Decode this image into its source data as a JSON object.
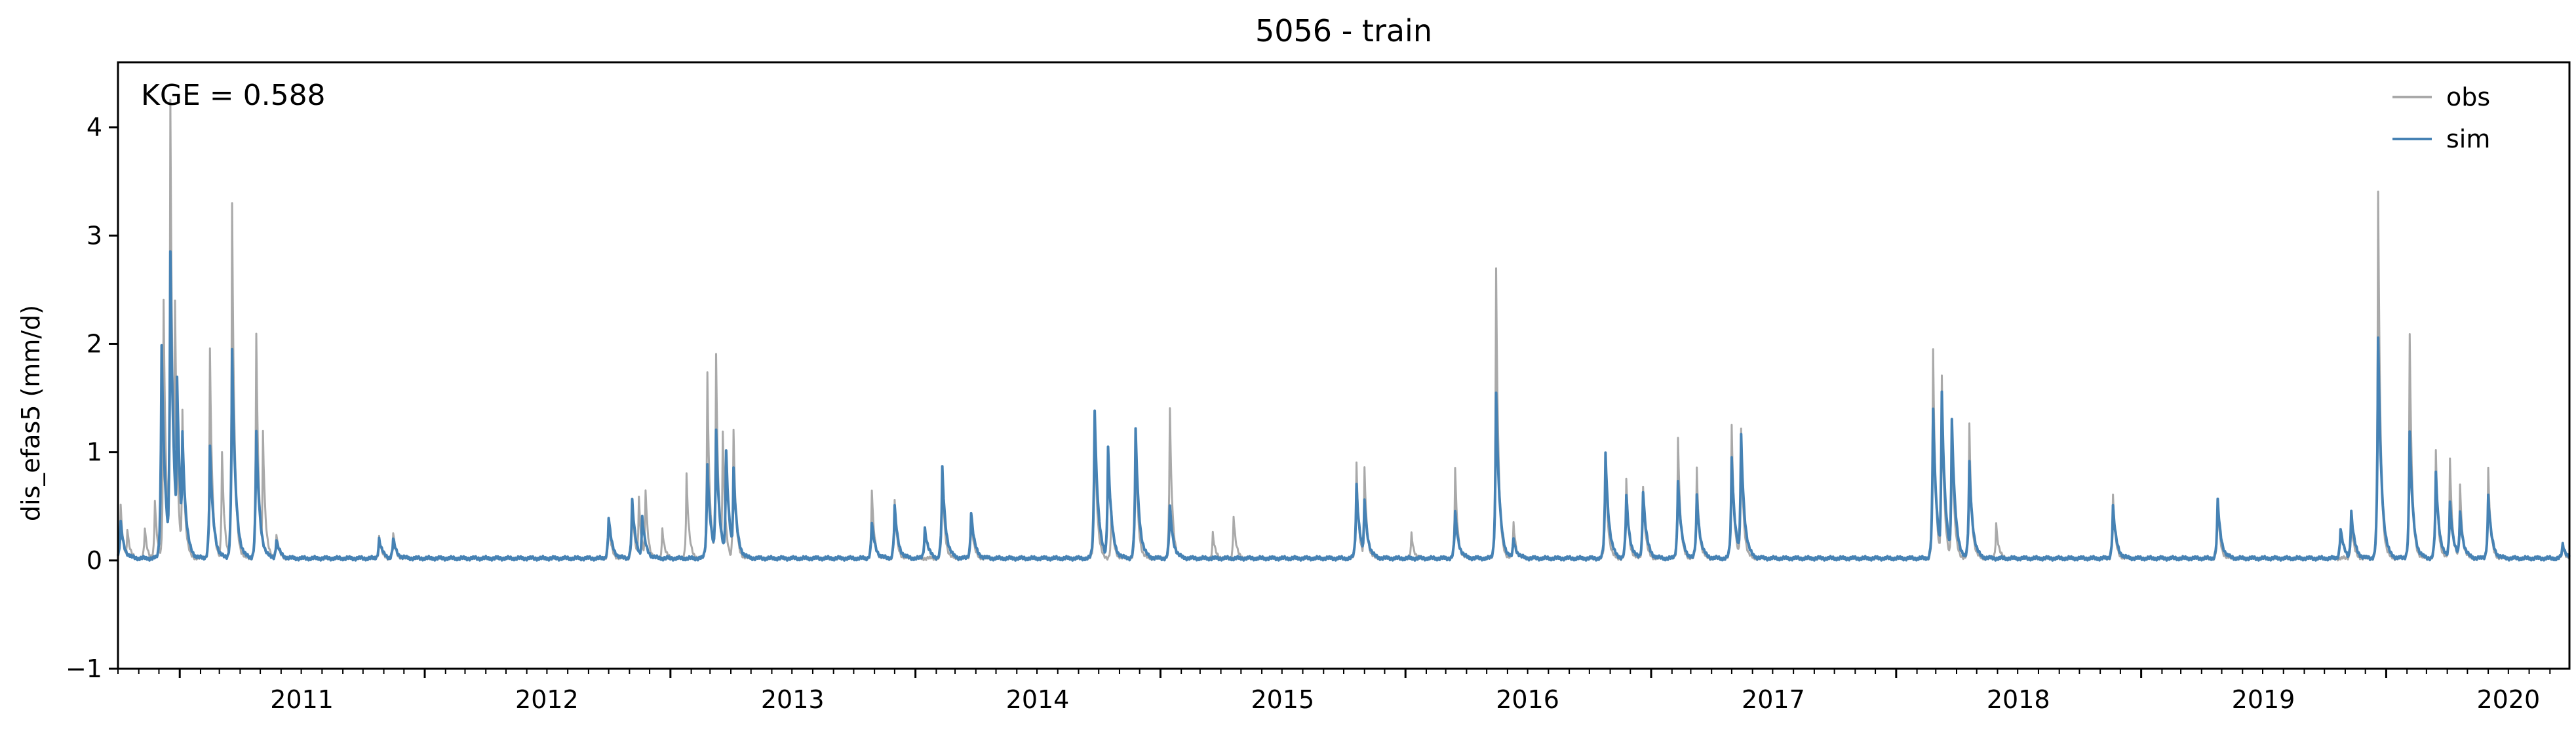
{
  "chart_data": {
    "type": "line",
    "title": "5056 - train",
    "xlabel": "",
    "ylabel": "dis_efas5 (mm/d)",
    "xlim": [
      "2010-10-01",
      "2020-09-30"
    ],
    "ylim": [
      -1,
      4.6
    ],
    "yticks": [
      -1,
      0,
      1,
      2,
      3,
      4
    ],
    "xticks": [
      {
        "label": "2011",
        "date": "2011-01-01"
      },
      {
        "label": "2012",
        "date": "2012-01-01"
      },
      {
        "label": "2013",
        "date": "2013-01-01"
      },
      {
        "label": "2014",
        "date": "2014-01-01"
      },
      {
        "label": "2015",
        "date": "2015-01-01"
      },
      {
        "label": "2016",
        "date": "2016-01-01"
      },
      {
        "label": "2017",
        "date": "2017-01-01"
      },
      {
        "label": "2018",
        "date": "2018-01-01"
      },
      {
        "label": "2019",
        "date": "2019-01-01"
      },
      {
        "label": "2020",
        "date": "2020-01-01"
      }
    ],
    "grid": false,
    "legend": "top-right",
    "annotation": "KGE = 0.588",
    "baseline": 0.02,
    "series": [
      {
        "name": "obs",
        "color": "#a9a9a9",
        "peaks": [
          [
            "2010-10-05",
            0.5
          ],
          [
            "2010-10-15",
            0.3
          ],
          [
            "2010-11-10",
            0.3
          ],
          [
            "2010-11-25",
            0.55
          ],
          [
            "2010-12-08",
            2.4
          ],
          [
            "2010-12-18",
            4.25
          ],
          [
            "2010-12-25",
            2.4
          ],
          [
            "2011-01-05",
            1.4
          ],
          [
            "2011-02-15",
            1.95
          ],
          [
            "2011-03-05",
            1.0
          ],
          [
            "2011-03-20",
            3.3
          ],
          [
            "2011-04-25",
            2.1
          ],
          [
            "2011-05-05",
            1.2
          ],
          [
            "2011-05-25",
            0.25
          ],
          [
            "2011-10-25",
            0.22
          ],
          [
            "2011-11-15",
            0.25
          ],
          [
            "2012-10-01",
            0.4
          ],
          [
            "2012-11-05",
            0.55
          ],
          [
            "2012-11-15",
            0.6
          ],
          [
            "2012-11-25",
            0.65
          ],
          [
            "2012-12-20",
            0.3
          ],
          [
            "2013-01-25",
            0.8
          ],
          [
            "2013-02-25",
            1.75
          ],
          [
            "2013-03-10",
            1.9
          ],
          [
            "2013-03-20",
            1.2
          ],
          [
            "2013-04-05",
            1.2
          ],
          [
            "2013-10-28",
            0.65
          ],
          [
            "2013-12-01",
            0.55
          ],
          [
            "2014-02-10",
            0.85
          ],
          [
            "2014-03-25",
            0.45
          ],
          [
            "2014-09-25",
            1.4
          ],
          [
            "2014-10-20",
            0.45
          ],
          [
            "2014-11-25",
            1.2
          ],
          [
            "2015-01-15",
            1.4
          ],
          [
            "2015-03-20",
            0.25
          ],
          [
            "2015-04-20",
            0.42
          ],
          [
            "2015-10-20",
            0.9
          ],
          [
            "2015-11-01",
            0.85
          ],
          [
            "2016-01-10",
            0.25
          ],
          [
            "2016-03-15",
            0.85
          ],
          [
            "2016-05-15",
            2.7
          ],
          [
            "2016-06-10",
            0.35
          ],
          [
            "2016-10-25",
            1.0
          ],
          [
            "2016-11-25",
            0.75
          ],
          [
            "2016-12-20",
            0.7
          ],
          [
            "2017-02-10",
            1.15
          ],
          [
            "2017-03-10",
            0.85
          ],
          [
            "2017-05-01",
            1.25
          ],
          [
            "2017-05-15",
            1.2
          ],
          [
            "2018-02-25",
            1.95
          ],
          [
            "2018-03-10",
            1.7
          ],
          [
            "2018-03-25",
            1.3
          ],
          [
            "2018-04-20",
            1.25
          ],
          [
            "2018-05-30",
            0.35
          ],
          [
            "2018-11-20",
            0.6
          ],
          [
            "2019-04-25",
            0.55
          ],
          [
            "2019-11-10",
            0.4
          ],
          [
            "2019-12-20",
            3.4
          ],
          [
            "2020-02-05",
            2.1
          ],
          [
            "2020-03-15",
            1.0
          ],
          [
            "2020-04-05",
            0.95
          ],
          [
            "2020-04-20",
            0.7
          ],
          [
            "2020-06-01",
            0.85
          ],
          [
            "2020-09-20",
            0.15
          ]
        ]
      },
      {
        "name": "sim",
        "color": "#4682b4",
        "peaks": [
          [
            "2010-10-05",
            0.35
          ],
          [
            "2010-12-05",
            2.0
          ],
          [
            "2010-12-18",
            2.85
          ],
          [
            "2010-12-28",
            1.7
          ],
          [
            "2011-01-05",
            1.2
          ],
          [
            "2011-02-15",
            1.05
          ],
          [
            "2011-03-20",
            1.95
          ],
          [
            "2011-04-25",
            1.2
          ],
          [
            "2011-05-25",
            0.2
          ],
          [
            "2011-10-25",
            0.2
          ],
          [
            "2011-11-15",
            0.2
          ],
          [
            "2012-10-01",
            0.4
          ],
          [
            "2012-11-05",
            0.55
          ],
          [
            "2012-11-20",
            0.4
          ],
          [
            "2013-02-25",
            0.9
          ],
          [
            "2013-03-10",
            1.2
          ],
          [
            "2013-03-25",
            1.0
          ],
          [
            "2013-04-05",
            0.85
          ],
          [
            "2013-10-28",
            0.35
          ],
          [
            "2013-12-01",
            0.5
          ],
          [
            "2014-01-15",
            0.3
          ],
          [
            "2014-02-10",
            0.85
          ],
          [
            "2014-03-25",
            0.45
          ],
          [
            "2014-09-25",
            1.4
          ],
          [
            "2014-10-15",
            1.05
          ],
          [
            "2014-11-25",
            1.2
          ],
          [
            "2015-01-15",
            0.5
          ],
          [
            "2015-10-20",
            0.7
          ],
          [
            "2015-11-01",
            0.55
          ],
          [
            "2016-03-15",
            0.45
          ],
          [
            "2016-05-15",
            1.55
          ],
          [
            "2016-06-10",
            0.2
          ],
          [
            "2016-10-25",
            1.0
          ],
          [
            "2016-11-25",
            0.6
          ],
          [
            "2016-12-20",
            0.65
          ],
          [
            "2017-02-10",
            0.75
          ],
          [
            "2017-03-10",
            0.6
          ],
          [
            "2017-05-01",
            0.95
          ],
          [
            "2017-05-15",
            1.15
          ],
          [
            "2018-02-25",
            1.4
          ],
          [
            "2018-03-10",
            1.55
          ],
          [
            "2018-03-25",
            1.3
          ],
          [
            "2018-04-20",
            0.9
          ],
          [
            "2018-11-20",
            0.5
          ],
          [
            "2019-04-25",
            0.55
          ],
          [
            "2019-10-25",
            0.3
          ],
          [
            "2019-11-10",
            0.45
          ],
          [
            "2019-12-20",
            2.05
          ],
          [
            "2020-02-05",
            1.2
          ],
          [
            "2020-03-15",
            0.8
          ],
          [
            "2020-04-05",
            0.55
          ],
          [
            "2020-04-20",
            0.45
          ],
          [
            "2020-06-01",
            0.6
          ],
          [
            "2020-09-20",
            0.15
          ]
        ]
      }
    ]
  }
}
